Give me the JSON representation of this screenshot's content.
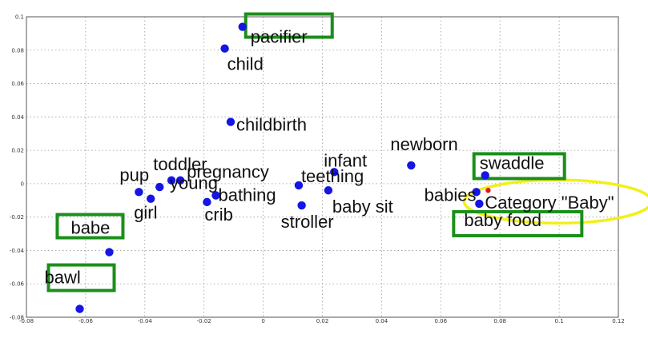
{
  "chart_data": {
    "type": "scatter",
    "title": "",
    "xlabel": "",
    "ylabel": "",
    "xlim": [
      -0.08,
      0.12
    ],
    "ylim": [
      -0.08,
      0.1
    ],
    "x_ticks": [
      -0.08,
      -0.06,
      -0.04,
      -0.02,
      0,
      0.02,
      0.04,
      0.06,
      0.08,
      0.1,
      0.12
    ],
    "x_tick_labels": [
      "-0.08",
      "-0.06",
      "-0.04",
      "-0.02",
      "0",
      "0.02",
      "0.04",
      "0.06",
      "0.08",
      "0.1",
      "0.12"
    ],
    "y_ticks": [
      -0.08,
      -0.06,
      -0.04,
      -0.02,
      0,
      0.02,
      0.04,
      0.06,
      0.08,
      0.1
    ],
    "y_tick_labels": [
      "-0.08",
      "-0.06",
      "-0.04",
      "-0.02",
      "0",
      "0.02",
      "0.04",
      "0.06",
      "0.08",
      "0.1"
    ],
    "grid": true,
    "point_color": "#1515e6",
    "highlight_box_color": "#1a8f1a",
    "highlight_ellipse_color": "#f2ef1a",
    "category_point_color": "#e01818",
    "points": [
      {
        "label": "pacifier",
        "x": -0.007,
        "y": 0.094,
        "highlighted": true
      },
      {
        "label": "child",
        "x": -0.013,
        "y": 0.081,
        "highlighted": false
      },
      {
        "label": "childbirth",
        "x": -0.011,
        "y": 0.037,
        "highlighted": false
      },
      {
        "label": "toddler",
        "x": -0.035,
        "y": -0.002,
        "highlighted": false
      },
      {
        "label": "pup",
        "x": -0.042,
        "y": -0.005,
        "highlighted": false
      },
      {
        "label": "pregnancy",
        "x": -0.028,
        "y": 0.002,
        "highlighted": false
      },
      {
        "label": "young",
        "x": -0.031,
        "y": 0.002,
        "highlighted": false
      },
      {
        "label": "girl",
        "x": -0.038,
        "y": -0.009,
        "highlighted": false
      },
      {
        "label": "bathing",
        "x": -0.016,
        "y": -0.007,
        "highlighted": false
      },
      {
        "label": "crib",
        "x": -0.019,
        "y": -0.011,
        "highlighted": false
      },
      {
        "label": "teething",
        "x": 0.012,
        "y": -0.001,
        "highlighted": false
      },
      {
        "label": "stroller",
        "x": 0.013,
        "y": -0.013,
        "highlighted": false
      },
      {
        "label": "infant",
        "x": 0.024,
        "y": 0.007,
        "highlighted": false
      },
      {
        "label": "baby sit",
        "x": 0.022,
        "y": -0.004,
        "highlighted": false
      },
      {
        "label": "newborn",
        "x": 0.05,
        "y": 0.011,
        "highlighted": false
      },
      {
        "label": "babies",
        "x": 0.072,
        "y": -0.005,
        "highlighted": false
      },
      {
        "label": "swaddle",
        "x": 0.075,
        "y": 0.005,
        "highlighted": true
      },
      {
        "label": "baby food",
        "x": 0.073,
        "y": -0.012,
        "highlighted": true
      },
      {
        "label": "babe",
        "x": -0.052,
        "y": -0.041,
        "highlighted": true
      },
      {
        "label": "bawl",
        "x": -0.062,
        "y": -0.075,
        "highlighted": true
      }
    ],
    "category_point": {
      "label": "Category \"Baby\"",
      "x": 0.076,
      "y": -0.004
    }
  }
}
